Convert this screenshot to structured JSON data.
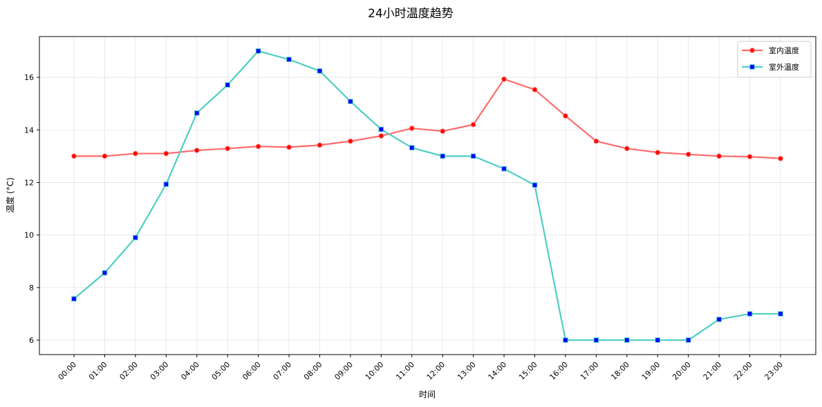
{
  "chart_data": {
    "type": "line",
    "title": "24小时温度趋势",
    "xlabel": "时间",
    "ylabel": "温度 (°C)",
    "x": [
      "00:00",
      "01:00",
      "02:00",
      "03:00",
      "04:00",
      "05:00",
      "06:00",
      "07:00",
      "08:00",
      "09:00",
      "10:00",
      "11:00",
      "12:00",
      "13:00",
      "14:00",
      "15:00",
      "16:00",
      "17:00",
      "18:00",
      "19:00",
      "20:00",
      "21:00",
      "22:00",
      "23:00"
    ],
    "ylim": [
      5.45,
      17.55
    ],
    "yticks": [
      6,
      8,
      10,
      12,
      14,
      16
    ],
    "grid": true,
    "legend_position": "top-right",
    "series": [
      {
        "name": "室内温度",
        "color": "#ff6b6b",
        "marker_color": "#ff0000",
        "marker": "circle",
        "values": [
          13.0,
          13.0,
          13.1,
          13.1,
          13.22,
          13.29,
          13.37,
          13.34,
          13.42,
          13.57,
          13.77,
          14.06,
          13.95,
          14.2,
          15.93,
          15.53,
          14.53,
          13.57,
          13.29,
          13.14,
          13.07,
          13.0,
          12.98,
          12.91
        ]
      },
      {
        "name": "室外温度",
        "color": "#4ecdc4",
        "marker_color": "#0000ff",
        "marker": "square",
        "values": [
          7.57,
          8.56,
          9.9,
          11.93,
          14.64,
          15.71,
          17.0,
          16.68,
          16.24,
          15.08,
          14.02,
          13.32,
          13.0,
          13.0,
          12.52,
          11.9,
          6.0,
          6.0,
          6.0,
          6.0,
          6.0,
          6.79,
          7.0,
          7.0
        ]
      }
    ]
  }
}
